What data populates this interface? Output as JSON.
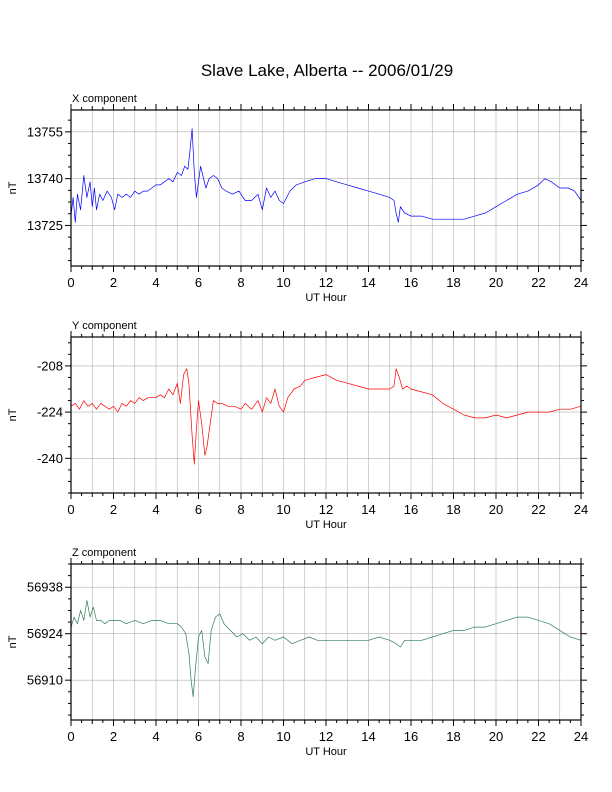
{
  "title": "Slave Lake, Alberta -- 2006/01/29",
  "chart_data": [
    {
      "type": "line",
      "panel_title": "X component",
      "xlabel": "UT Hour",
      "ylabel": "nT",
      "xlim": [
        0,
        24
      ],
      "ylim": [
        13712,
        13762
      ],
      "xticks": [
        0,
        2,
        4,
        6,
        8,
        10,
        12,
        14,
        16,
        18,
        20,
        22,
        24
      ],
      "yticks": [
        13725,
        13740,
        13755
      ],
      "grid": true,
      "color": "#0000ff",
      "series": [
        {
          "x": [
            0,
            0.1,
            0.2,
            0.3,
            0.45,
            0.6,
            0.75,
            0.9,
            1.0,
            1.1,
            1.2,
            1.35,
            1.5,
            1.7,
            1.9,
            2.05,
            2.2,
            2.4,
            2.6,
            2.8,
            3.0,
            3.2,
            3.4,
            3.6,
            3.8,
            4.0,
            4.2,
            4.4,
            4.6,
            4.8,
            5.0,
            5.2,
            5.35,
            5.5,
            5.6,
            5.7,
            5.8,
            5.9,
            6.0,
            6.1,
            6.2,
            6.35,
            6.5,
            6.7,
            6.9,
            7.1,
            7.3,
            7.6,
            7.9,
            8.2,
            8.5,
            8.8,
            9.0,
            9.2,
            9.4,
            9.6,
            9.8,
            10.0,
            10.3,
            10.6,
            11.0,
            11.5,
            12.0,
            12.5,
            13.0,
            13.5,
            14.0,
            14.5,
            15.0,
            15.2,
            15.3,
            15.4,
            15.5,
            15.7,
            16.0,
            16.5,
            17.0,
            17.5,
            18.0,
            18.5,
            19.0,
            19.5,
            20.0,
            20.5,
            21.0,
            21.5,
            22.0,
            22.3,
            22.6,
            23.0,
            23.4,
            23.7,
            24.0
          ],
          "y": [
            13728,
            13734,
            13726,
            13735,
            13730,
            13741,
            13734,
            13739,
            13731,
            13737,
            13730,
            13735,
            13733,
            13736,
            13734,
            13730,
            13735,
            13734,
            13735,
            13734,
            13736,
            13735,
            13736,
            13736,
            13737,
            13738,
            13738,
            13739,
            13740,
            13739,
            13742,
            13741,
            13744,
            13743,
            13749,
            13756,
            13742,
            13734,
            13739,
            13744,
            13741,
            13737,
            13740,
            13741,
            13740,
            13737,
            13736,
            13735,
            13736,
            13733,
            13733,
            13735,
            13730,
            13737,
            13734,
            13736,
            13733,
            13732,
            13736,
            13738,
            13739,
            13740,
            13740,
            13739,
            13738,
            13737,
            13736,
            13735,
            13734,
            13733,
            13729,
            13726,
            13731,
            13729,
            13728,
            13728,
            13727,
            13727,
            13727,
            13727,
            13728,
            13729,
            13731,
            13733,
            13735,
            13736,
            13738,
            13740,
            13739,
            13737,
            13737,
            13736,
            13733
          ]
        }
      ]
    },
    {
      "type": "line",
      "panel_title": "Y component",
      "xlabel": "UT Hour",
      "ylabel": "nT",
      "xlim": [
        0,
        24
      ],
      "ylim": [
        -252,
        -198
      ],
      "xticks": [
        0,
        2,
        4,
        6,
        8,
        10,
        12,
        14,
        16,
        18,
        20,
        22,
        24
      ],
      "yticks": [
        -240,
        -224,
        -208
      ],
      "grid": true,
      "color": "#ff0000",
      "series": [
        {
          "x": [
            0,
            0.2,
            0.4,
            0.6,
            0.8,
            1.0,
            1.2,
            1.4,
            1.6,
            1.8,
            2.0,
            2.2,
            2.4,
            2.6,
            2.8,
            3.0,
            3.2,
            3.4,
            3.6,
            3.8,
            4.0,
            4.2,
            4.4,
            4.6,
            4.8,
            5.0,
            5.15,
            5.3,
            5.45,
            5.55,
            5.7,
            5.8,
            5.9,
            6.0,
            6.15,
            6.3,
            6.4,
            6.55,
            6.7,
            6.9,
            7.1,
            7.4,
            7.7,
            8.0,
            8.2,
            8.5,
            8.8,
            9.0,
            9.2,
            9.4,
            9.6,
            9.8,
            10.0,
            10.2,
            10.5,
            10.8,
            11.0,
            11.5,
            12.0,
            12.5,
            13.0,
            13.5,
            14.0,
            14.5,
            15.0,
            15.2,
            15.3,
            15.45,
            15.6,
            15.8,
            16.0,
            16.5,
            17.0,
            17.5,
            18.0,
            18.5,
            19.0,
            19.5,
            20.0,
            20.5,
            21.0,
            21.5,
            22.0,
            22.5,
            23.0,
            23.5,
            24.0
          ],
          "y": [
            -222,
            -221,
            -223,
            -220,
            -222,
            -221,
            -223,
            -221,
            -222,
            -223,
            -222,
            -224,
            -221,
            -222,
            -220,
            -221,
            -219,
            -220,
            -219,
            -219,
            -219,
            -218,
            -219,
            -216,
            -218,
            -214,
            -221,
            -211,
            -209,
            -214,
            -232,
            -242,
            -230,
            -220,
            -228,
            -239,
            -236,
            -228,
            -220,
            -221,
            -221,
            -222,
            -222,
            -223,
            -221,
            -223,
            -220,
            -224,
            -219,
            -221,
            -216,
            -222,
            -224,
            -219,
            -216,
            -215,
            -213,
            -212,
            -211,
            -213,
            -214,
            -215,
            -216,
            -216,
            -216,
            -215,
            -209,
            -212,
            -216,
            -215,
            -216,
            -217,
            -218,
            -221,
            -223,
            -225,
            -226,
            -226,
            -225,
            -226,
            -225,
            -224,
            -224,
            -224,
            -223,
            -223,
            -222
          ]
        }
      ]
    },
    {
      "type": "line",
      "panel_title": "Z component",
      "xlabel": "UT Hour",
      "ylabel": "nT",
      "xlim": [
        0,
        24
      ],
      "ylim": [
        56898,
        56945
      ],
      "xticks": [
        0,
        2,
        4,
        6,
        8,
        10,
        12,
        14,
        16,
        18,
        20,
        22,
        24
      ],
      "yticks": [
        56910,
        56924,
        56938
      ],
      "grid": true,
      "color": "#2e7d52",
      "series": [
        {
          "x": [
            0,
            0.15,
            0.3,
            0.45,
            0.6,
            0.75,
            0.9,
            1.05,
            1.2,
            1.4,
            1.6,
            1.8,
            2.0,
            2.3,
            2.6,
            3.0,
            3.4,
            3.8,
            4.2,
            4.6,
            5.0,
            5.2,
            5.4,
            5.55,
            5.65,
            5.75,
            5.85,
            6.0,
            6.15,
            6.3,
            6.45,
            6.6,
            6.8,
            7.0,
            7.2,
            7.5,
            7.8,
            8.1,
            8.4,
            8.7,
            9.0,
            9.3,
            9.6,
            10.0,
            10.4,
            10.8,
            11.2,
            11.6,
            12.0,
            12.5,
            13.0,
            13.5,
            14.0,
            14.5,
            15.0,
            15.3,
            15.5,
            15.7,
            16.0,
            16.5,
            17.0,
            17.5,
            18.0,
            18.5,
            19.0,
            19.5,
            20.0,
            20.5,
            21.0,
            21.5,
            22.0,
            22.5,
            23.0,
            23.5,
            24.0
          ],
          "y": [
            56926,
            56929,
            56927,
            56931,
            56928,
            56934,
            56929,
            56932,
            56928,
            56928,
            56927,
            56928,
            56928,
            56928,
            56927,
            56928,
            56927,
            56928,
            56928,
            56927,
            56927,
            56926,
            56924,
            56918,
            56910,
            56905,
            56913,
            56923,
            56925,
            56917,
            56915,
            56925,
            56929,
            56930,
            56927,
            56925,
            56923,
            56924,
            56922,
            56923,
            56921,
            56923,
            56922,
            56923,
            56921,
            56922,
            56923,
            56922,
            56922,
            56922,
            56922,
            56922,
            56922,
            56923,
            56922,
            56921,
            56920,
            56922,
            56922,
            56922,
            56923,
            56924,
            56925,
            56925,
            56926,
            56926,
            56927,
            56928,
            56929,
            56929,
            56928,
            56927,
            56925,
            56923,
            56922
          ]
        }
      ]
    }
  ]
}
